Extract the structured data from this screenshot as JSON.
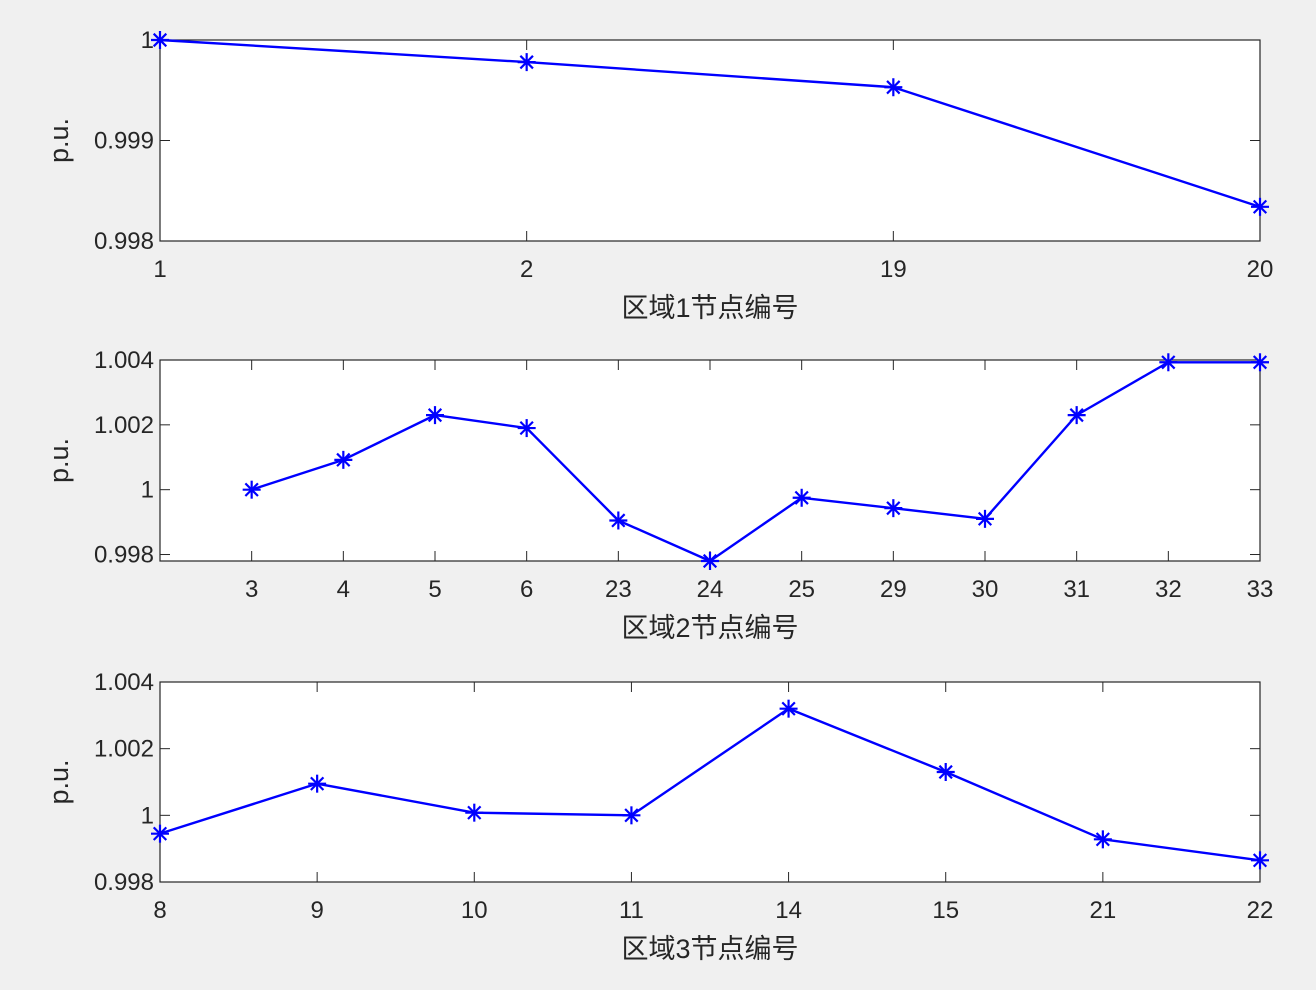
{
  "colors": {
    "background": "#f0f0f0",
    "axes_background": "#ffffff",
    "axis": "#262626",
    "series": "#0000ff"
  },
  "chart_data": [
    {
      "type": "line",
      "marker": "asterisk",
      "categories": [
        "1",
        "2",
        "19",
        "20"
      ],
      "series": [
        {
          "values": [
            1.0,
            0.99978,
            0.99953,
            0.99834
          ]
        }
      ],
      "xlabel": "区域1节点编号",
      "ylabel": "p.u.",
      "ylim": [
        0.998,
        1.0
      ],
      "yticks": [
        "0.998",
        "0.999",
        "1"
      ],
      "grid": false
    },
    {
      "type": "line",
      "marker": "asterisk",
      "categories": [
        "3",
        "4",
        "5",
        "6",
        "23",
        "24",
        "25",
        "29",
        "30",
        "31",
        "32",
        "33"
      ],
      "series": [
        {
          "values": [
            1.0,
            1.00092,
            1.0023,
            1.0019,
            0.99905,
            0.9978,
            0.99975,
            0.99943,
            0.9991,
            1.0023,
            1.00393,
            1.00393
          ]
        }
      ],
      "xlabel": "区域2节点编号",
      "ylabel": "p.u.",
      "ylim": [
        0.9978,
        1.004
      ],
      "yticks": [
        "0.998",
        "1",
        "1.002",
        "1.004"
      ],
      "grid": false
    },
    {
      "type": "line",
      "marker": "asterisk",
      "categories": [
        "8",
        "9",
        "10",
        "11",
        "14",
        "15",
        "21",
        "22"
      ],
      "series": [
        {
          "values": [
            0.99945,
            1.00095,
            1.00008,
            1.0,
            1.0032,
            1.0013,
            0.99928,
            0.99865
          ]
        }
      ],
      "xlabel": "区域3节点编号",
      "ylabel": "p.u.",
      "ylim": [
        0.998,
        1.004
      ],
      "yticks": [
        "0.998",
        "1",
        "1.002",
        "1.004"
      ],
      "grid": false
    }
  ]
}
